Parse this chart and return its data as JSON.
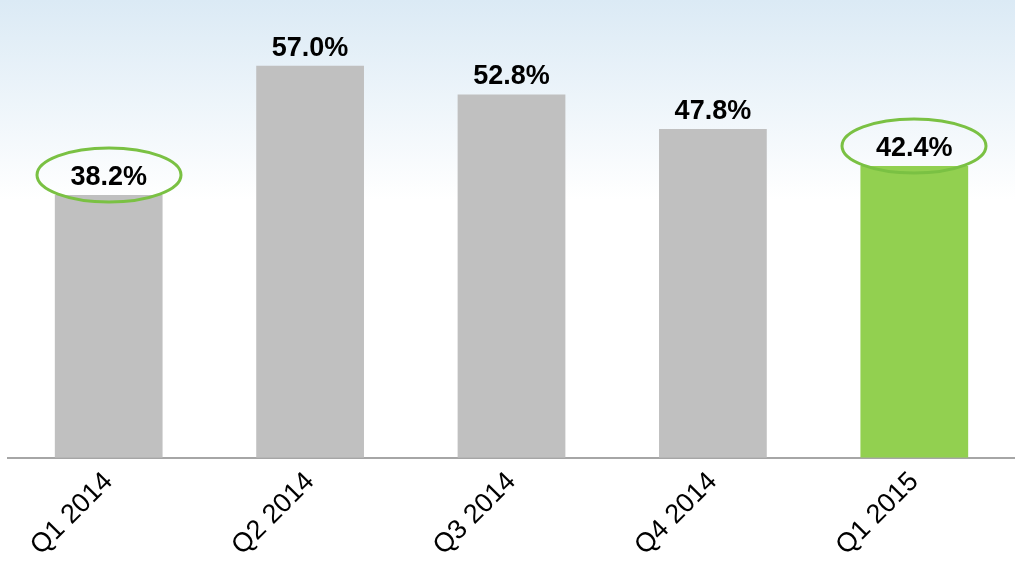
{
  "chart_data": {
    "type": "bar",
    "categories": [
      "Q1 2014",
      "Q2 2014",
      "Q3 2014",
      "Q4 2014",
      "Q1 2015"
    ],
    "values": [
      38.2,
      57.0,
      52.8,
      47.8,
      42.4
    ],
    "value_labels": [
      "38.2%",
      "57.0%",
      "52.8%",
      "47.8%",
      "42.4%"
    ],
    "colors": [
      "#c0c0c0",
      "#c0c0c0",
      "#c0c0c0",
      "#c0c0c0",
      "#92d050"
    ],
    "tick_labels": "x",
    "grid": false,
    "legend": false
  }
}
